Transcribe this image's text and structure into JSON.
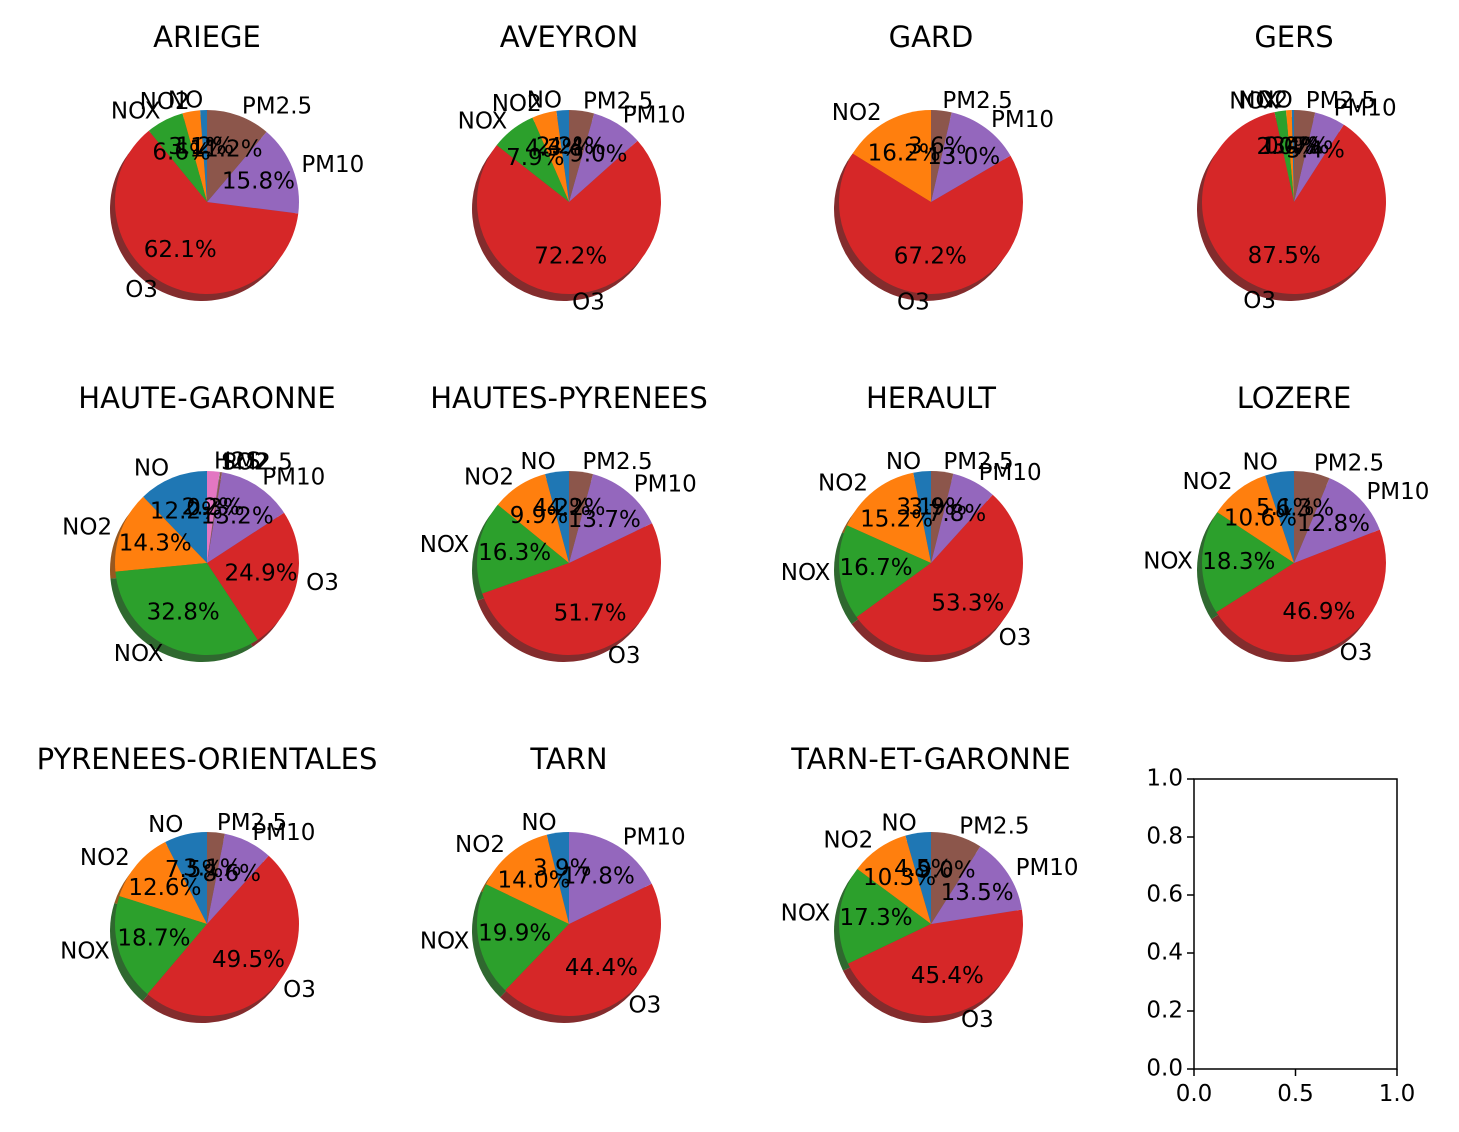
{
  "colors": {
    "NO": "#1f77b4",
    "NO2": "#ff7f0e",
    "NOX": "#2ca02c",
    "O3": "#d62728",
    "PM10": "#9467bd",
    "PM2.5": "#8c564b",
    "H2S": "#e377c2",
    "SO2": "#7f7f7f"
  },
  "chart_data": [
    {
      "type": "pie",
      "title": "ARIEGE",
      "shadow": true,
      "slices": [
        {
          "label": "NO",
          "value": 1.2,
          "pct_text": "1.2%"
        },
        {
          "label": "NO2",
          "value": 3.1,
          "pct_text": "3.1%"
        },
        {
          "label": "NOX",
          "value": 6.6,
          "pct_text": "6.6%"
        },
        {
          "label": "O3",
          "value": 62.1,
          "pct_text": "62.1%"
        },
        {
          "label": "PM10",
          "value": 15.8,
          "pct_text": "15.8%"
        },
        {
          "label": "PM2.5",
          "value": 11.2,
          "pct_text": "11.2%"
        }
      ]
    },
    {
      "type": "pie",
      "title": "AVEYRON",
      "shadow": true,
      "slices": [
        {
          "label": "NO",
          "value": 2.2,
          "pct_text": "2.2%"
        },
        {
          "label": "NO2",
          "value": 4.3,
          "pct_text": "4.3%"
        },
        {
          "label": "NOX",
          "value": 7.9,
          "pct_text": "7.9%"
        },
        {
          "label": "O3",
          "value": 72.2,
          "pct_text": "72.2%"
        },
        {
          "label": "PM10",
          "value": 9.0,
          "pct_text": "9.0%"
        },
        {
          "label": "PM2.5",
          "value": 4.4,
          "pct_text": "4.4%"
        }
      ]
    },
    {
      "type": "pie",
      "title": "GARD",
      "shadow": true,
      "slices": [
        {
          "label": "NO2",
          "value": 16.2,
          "pct_text": "16.2%"
        },
        {
          "label": "O3",
          "value": 67.2,
          "pct_text": "67.2%"
        },
        {
          "label": "PM10",
          "value": 13.0,
          "pct_text": "13.0%"
        },
        {
          "label": "PM2.5",
          "value": 3.6,
          "pct_text": "3.6%"
        }
      ]
    },
    {
      "type": "pie",
      "title": "GERS",
      "shadow": true,
      "slices": [
        {
          "label": "NO",
          "value": 0.4,
          "pct_text": "0.4%"
        },
        {
          "label": "NO2",
          "value": 1.0,
          "pct_text": "1.0%"
        },
        {
          "label": "NOX",
          "value": 2.0,
          "pct_text": "2.0%"
        },
        {
          "label": "O3",
          "value": 87.5,
          "pct_text": "87.5%"
        },
        {
          "label": "PM10",
          "value": 5.4,
          "pct_text": "5.4%"
        },
        {
          "label": "PM2.5",
          "value": 3.7,
          "pct_text": "3.7%"
        }
      ]
    },
    {
      "type": "pie",
      "title": "HAUTE-GARONNE",
      "shadow": true,
      "slices": [
        {
          "label": "NO",
          "value": 12.2,
          "pct_text": "12.2%"
        },
        {
          "label": "NO2",
          "value": 14.3,
          "pct_text": "14.3%"
        },
        {
          "label": "NOX",
          "value": 32.8,
          "pct_text": "32.8%"
        },
        {
          "label": "O3",
          "value": 24.9,
          "pct_text": "24.9%"
        },
        {
          "label": "PM10",
          "value": 13.2,
          "pct_text": "13.2%"
        },
        {
          "label": "PM2.5",
          "value": 0.3,
          "pct_text": "0.3%"
        },
        {
          "label": "SO2",
          "value": 0.1,
          "pct_text": ""
        },
        {
          "label": "H2S",
          "value": 2.2,
          "pct_text": "2.2%"
        }
      ]
    },
    {
      "type": "pie",
      "title": "HAUTES-PYRENEES",
      "shadow": true,
      "slices": [
        {
          "label": "NO",
          "value": 4.2,
          "pct_text": "4.2%"
        },
        {
          "label": "NO2",
          "value": 9.9,
          "pct_text": "9.9%"
        },
        {
          "label": "NOX",
          "value": 16.3,
          "pct_text": "16.3%"
        },
        {
          "label": "O3",
          "value": 51.7,
          "pct_text": "51.7%"
        },
        {
          "label": "PM10",
          "value": 13.7,
          "pct_text": "13.7%"
        },
        {
          "label": "PM2.5",
          "value": 4.2,
          "pct_text": "4.2%"
        }
      ]
    },
    {
      "type": "pie",
      "title": "HERAULT",
      "shadow": true,
      "slices": [
        {
          "label": "NO",
          "value": 3.1,
          "pct_text": "3.1%"
        },
        {
          "label": "NO2",
          "value": 15.2,
          "pct_text": "15.2%"
        },
        {
          "label": "NOX",
          "value": 16.7,
          "pct_text": "16.7%"
        },
        {
          "label": "O3",
          "value": 53.3,
          "pct_text": "53.3%"
        },
        {
          "label": "PM10",
          "value": 7.8,
          "pct_text": "7.8%"
        },
        {
          "label": "PM2.5",
          "value": 3.9,
          "pct_text": "3.9%"
        }
      ]
    },
    {
      "type": "pie",
      "title": "LOZERE",
      "shadow": true,
      "slices": [
        {
          "label": "NO",
          "value": 5.1,
          "pct_text": "5.1%"
        },
        {
          "label": "NO2",
          "value": 10.6,
          "pct_text": "10.6%"
        },
        {
          "label": "NOX",
          "value": 18.3,
          "pct_text": "18.3%"
        },
        {
          "label": "O3",
          "value": 46.9,
          "pct_text": "46.9%"
        },
        {
          "label": "PM10",
          "value": 12.8,
          "pct_text": "12.8%"
        },
        {
          "label": "PM2.5",
          "value": 6.3,
          "pct_text": "6.3%"
        }
      ]
    },
    {
      "type": "pie",
      "title": "PYRENEES-ORIENTALES",
      "shadow": true,
      "slices": [
        {
          "label": "NO",
          "value": 7.5,
          "pct_text": "7.5%"
        },
        {
          "label": "NO2",
          "value": 12.6,
          "pct_text": "12.6%"
        },
        {
          "label": "NOX",
          "value": 18.7,
          "pct_text": "18.7%"
        },
        {
          "label": "O3",
          "value": 49.5,
          "pct_text": "49.5%"
        },
        {
          "label": "PM10",
          "value": 8.6,
          "pct_text": "8.6%"
        },
        {
          "label": "PM2.5",
          "value": 3.1,
          "pct_text": "3.1%"
        }
      ]
    },
    {
      "type": "pie",
      "title": "TARN",
      "shadow": true,
      "slices": [
        {
          "label": "NO",
          "value": 3.9,
          "pct_text": "3.9%"
        },
        {
          "label": "NO2",
          "value": 14.0,
          "pct_text": "14.0%"
        },
        {
          "label": "NOX",
          "value": 19.9,
          "pct_text": "19.9%"
        },
        {
          "label": "O3",
          "value": 44.4,
          "pct_text": "44.4%"
        },
        {
          "label": "PM10",
          "value": 17.8,
          "pct_text": "17.8%"
        }
      ]
    },
    {
      "type": "pie",
      "title": "TARN-ET-GARONNE",
      "shadow": true,
      "slices": [
        {
          "label": "NO",
          "value": 4.5,
          "pct_text": "4.5%"
        },
        {
          "label": "NO2",
          "value": 10.3,
          "pct_text": "10.3%"
        },
        {
          "label": "NOX",
          "value": 17.3,
          "pct_text": "17.3%"
        },
        {
          "label": "O3",
          "value": 45.4,
          "pct_text": "45.4%"
        },
        {
          "label": "PM10",
          "value": 13.5,
          "pct_text": "13.5%"
        },
        {
          "label": "PM2.5",
          "value": 9.0,
          "pct_text": "9.0%"
        }
      ]
    },
    {
      "type": "line",
      "title": "",
      "empty": true,
      "xlim": [
        0,
        1
      ],
      "ylim": [
        0,
        1
      ],
      "xticks": [
        "0.0",
        "0.5",
        "1.0"
      ],
      "yticks": [
        "0.0",
        "0.2",
        "0.4",
        "0.6",
        "0.8",
        "1.0"
      ]
    }
  ]
}
